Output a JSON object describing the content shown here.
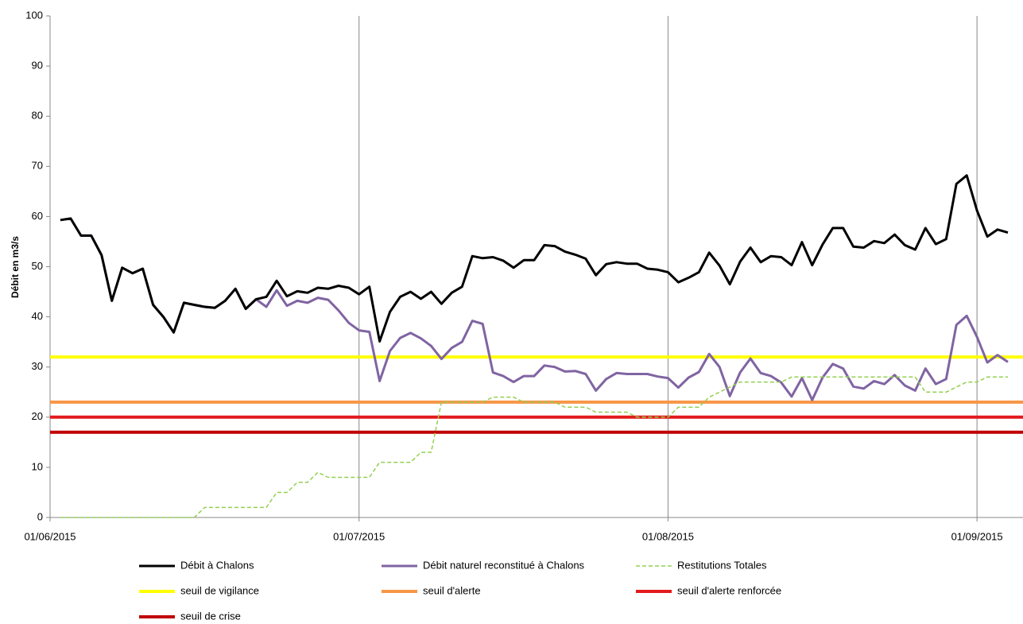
{
  "chart_data": {
    "type": "line",
    "y_label": "Débit en m3/s",
    "ylim": [
      0,
      100
    ],
    "yticks": [
      0,
      10,
      20,
      30,
      40,
      50,
      60,
      70,
      80,
      90,
      100
    ],
    "xlim": [
      0,
      93
    ],
    "xticks": [
      {
        "value": 0,
        "label": "01/06/2015"
      },
      {
        "value": 30,
        "label": "01/07/2015"
      },
      {
        "value": 60,
        "label": "01/08/2015"
      },
      {
        "value": 90,
        "label": "01/09/2015"
      }
    ],
    "grid_x": true,
    "x": [
      1,
      2,
      3,
      4,
      5,
      6,
      7,
      8,
      9,
      10,
      11,
      12,
      13,
      14,
      15,
      16,
      17,
      18,
      19,
      20,
      21,
      22,
      23,
      24,
      25,
      26,
      27,
      28,
      29,
      30,
      31,
      32,
      33,
      34,
      35,
      36,
      37,
      38,
      39,
      40,
      41,
      42,
      43,
      44,
      45,
      46,
      47,
      48,
      49,
      50,
      51,
      52,
      53,
      54,
      55,
      56,
      57,
      58,
      59,
      60,
      61,
      62,
      63,
      64,
      65,
      66,
      67,
      68,
      69,
      70,
      71,
      72,
      73,
      74,
      75,
      76,
      77,
      78,
      79,
      80,
      81,
      82,
      83,
      84,
      85,
      86,
      87,
      88,
      89,
      90,
      91,
      92,
      93
    ],
    "series": [
      {
        "name": "Débit naturel reconstitué à Chalons",
        "color": "#8064a2",
        "width": 3,
        "dashed": false,
        "values": [
          59.3,
          59.6,
          56.2,
          56.2,
          52.3,
          43.2,
          49.8,
          48.7,
          49.6,
          42.4,
          40.0,
          36.9,
          42.8,
          42.4,
          42.0,
          41.8,
          43.2,
          45.6,
          41.6,
          43.5,
          42.0,
          45.3,
          42.2,
          43.2,
          42.8,
          43.8,
          43.4,
          41.3,
          38.8,
          37.3,
          37.0,
          27.2,
          33.2,
          35.8,
          36.8,
          35.7,
          34.2,
          31.6,
          33.8,
          35.0,
          39.2,
          38.6,
          28.9,
          28.2,
          27.0,
          28.2,
          28.2,
          30.3,
          30.0,
          29.1,
          29.2,
          28.6,
          25.3,
          27.6,
          28.8,
          28.6,
          28.6,
          28.6,
          28.1,
          27.8,
          25.9,
          27.9,
          29.0,
          32.6,
          30.0,
          24.2,
          28.9,
          31.7,
          28.8,
          28.2,
          26.9,
          24.1,
          27.8,
          23.4,
          27.9,
          30.6,
          29.7,
          26.1,
          25.7,
          27.2,
          26.6,
          28.4,
          26.3,
          25.3,
          29.7,
          26.6,
          27.6,
          38.4,
          40.2,
          36.0,
          30.9,
          32.4,
          31.0
        ]
      },
      {
        "name": "Débit à Chalons",
        "color": "#000000",
        "width": 3,
        "dashed": false,
        "values": [
          59.3,
          59.6,
          56.2,
          56.2,
          52.3,
          43.2,
          49.8,
          48.7,
          49.6,
          42.4,
          40.0,
          36.9,
          42.8,
          42.4,
          42.0,
          41.8,
          43.2,
          45.6,
          41.6,
          43.5,
          44.0,
          47.2,
          44.1,
          45.1,
          44.8,
          45.8,
          45.6,
          46.2,
          45.8,
          44.5,
          46.0,
          35.1,
          41.0,
          44.0,
          45.0,
          43.6,
          45.0,
          42.6,
          44.8,
          46.0,
          52.1,
          51.7,
          51.9,
          51.2,
          49.8,
          51.3,
          51.3,
          54.3,
          54.1,
          53.0,
          52.4,
          51.6,
          48.3,
          50.5,
          50.9,
          50.6,
          50.6,
          49.6,
          49.4,
          48.9,
          46.9,
          47.8,
          48.9,
          52.8,
          50.2,
          46.5,
          51.0,
          53.8,
          50.9,
          52.1,
          51.9,
          50.3,
          54.9,
          50.3,
          54.4,
          57.7,
          57.7,
          54.0,
          53.8,
          55.1,
          54.7,
          56.4,
          54.3,
          53.4,
          57.7,
          54.5,
          55.5,
          66.5,
          68.2,
          61.2,
          56.0,
          57.4,
          56.8
        ]
      },
      {
        "name": "Restitutions Totales",
        "color": "#92d050",
        "width": 1.5,
        "dashed": true,
        "values": [
          0,
          0,
          0,
          0,
          0,
          0,
          0,
          0,
          0,
          0,
          0,
          0,
          0,
          0,
          2,
          2,
          2,
          2,
          2,
          2,
          2,
          5,
          5,
          7,
          7,
          9,
          8,
          8,
          8,
          8,
          8,
          11,
          11,
          11,
          11,
          13,
          13,
          23,
          23,
          23,
          23,
          23,
          24,
          24,
          24,
          23,
          23,
          23,
          23,
          22,
          22,
          22,
          21,
          21,
          21,
          21,
          20,
          20,
          20,
          20,
          22,
          22,
          22,
          24,
          25,
          26,
          27,
          27,
          27,
          27,
          27,
          28,
          28,
          28,
          28,
          28,
          28,
          28,
          28,
          28,
          28,
          28,
          28,
          28,
          25,
          25,
          25,
          26,
          27,
          27,
          28,
          28,
          28
        ]
      }
    ],
    "thresholds": [
      {
        "name": "seuil de vigilance",
        "color": "#ffff00",
        "value": 32
      },
      {
        "name": "seuil d'alerte",
        "color": "#f79646",
        "value": 23
      },
      {
        "name": "seuil d'alerte renforcée",
        "color": "#e31a1c",
        "value": 20
      },
      {
        "name": "seuil de crise",
        "color": "#c00000",
        "value": 17
      }
    ]
  }
}
